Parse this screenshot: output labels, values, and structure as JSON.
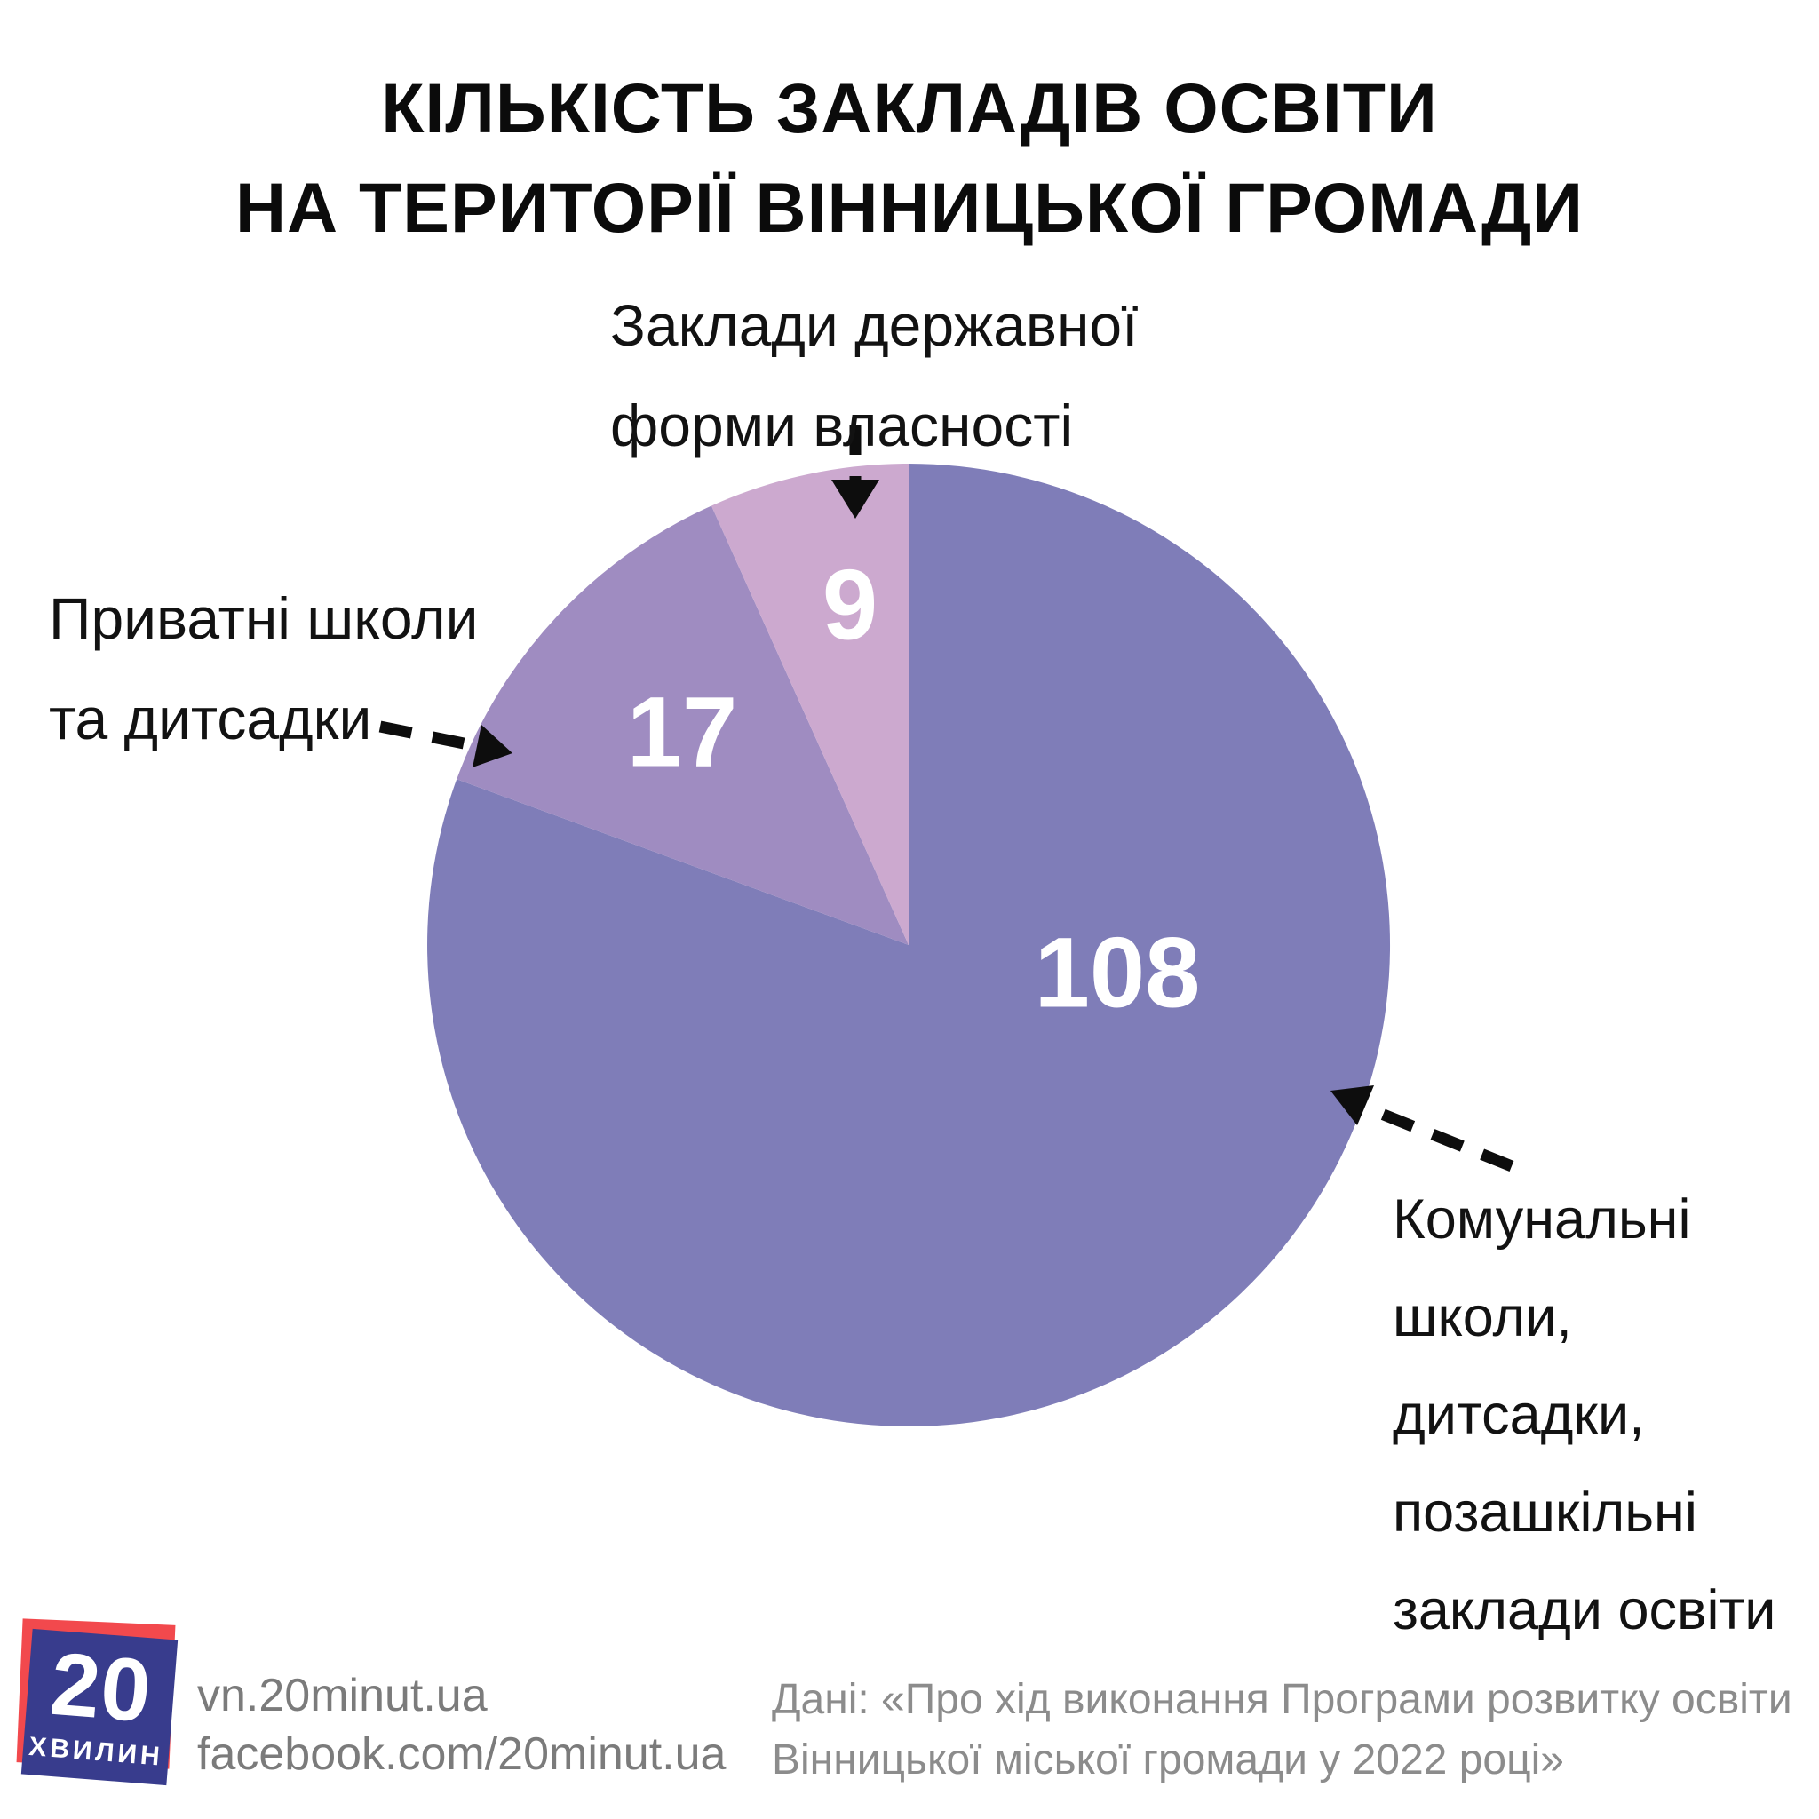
{
  "title": {
    "line1": "КІЛЬКІСТЬ ЗАКЛАДІВ ОСВІТИ",
    "line2": "НА ТЕРИТОРІЇ ВІННИЦЬКОЇ ГРОМАДИ"
  },
  "chart_data": {
    "type": "pie",
    "title": "КІЛЬКІСТЬ ЗАКЛАДІВ ОСВІТИ НА ТЕРИТОРІЇ ВІННИЦЬКОЇ ГРОМАДИ",
    "total": 134,
    "direction": "clockwise",
    "start_angle_deg": 0,
    "value_label_color": "#ffffff",
    "slices": [
      {
        "label": "Комунальні школи, дитсадки, позашкільні заклади освіти",
        "value": 108,
        "color": "#7f7db8"
      },
      {
        "label": "Приватні школи та дитсадки",
        "value": 17,
        "color": "#9f8cc1"
      },
      {
        "label": "Заклади державної форми власності",
        "value": 9,
        "color": "#cca9cf"
      }
    ]
  },
  "annotations": {
    "state": {
      "text": "Заклади державної\nформи власності"
    },
    "private": {
      "text": "Приватні школи\nта дитсадки"
    },
    "communal": {
      "text": "Комунальні\nшколи,\nдитсадки,\nпозашкільні\nзаклади освіти"
    }
  },
  "footer": {
    "logo": {
      "number": "20",
      "word": "хвилин",
      "blue": "#383c8d",
      "red": "#f2494d"
    },
    "links": {
      "text": "vn.20minut.ua\nfacebook.com/20minut.ua"
    },
    "source": "Дані: «Про хід виконання Програми розвитку освіти\nВінницької міської громади у 2022 році»"
  }
}
